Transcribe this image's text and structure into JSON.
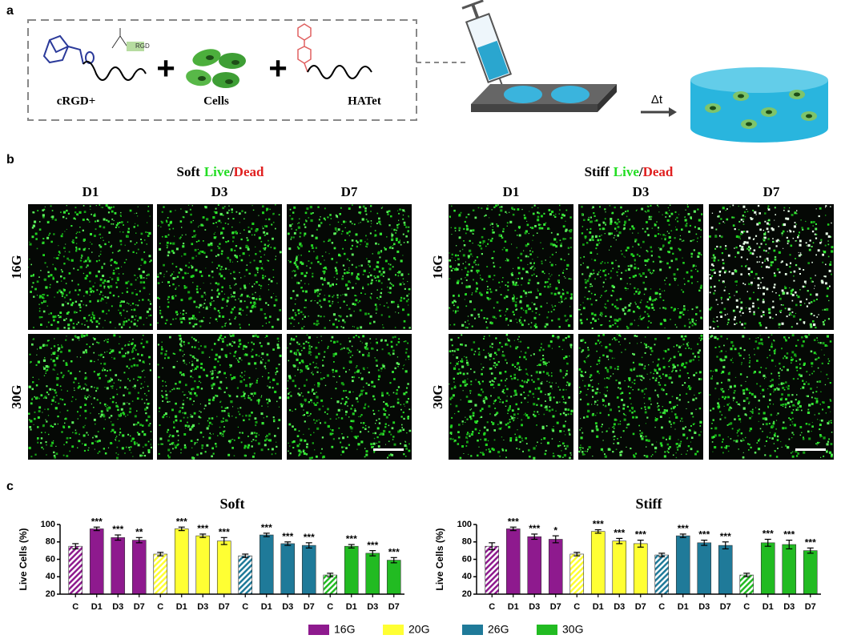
{
  "panel_labels": {
    "a": "a",
    "b": "b",
    "c": "c"
  },
  "schematic": {
    "crgd": "cRGD+",
    "rgd": "RGD",
    "cells": "Cells",
    "hatet": "HATet",
    "plus1": "+",
    "plus2": "+",
    "delta_t": "Δt"
  },
  "images": {
    "soft_title": {
      "word": "Soft",
      "live": "Live",
      "slash": "/",
      "dead": "Dead"
    },
    "stiff_title": {
      "word": "Stiff",
      "live": "Live",
      "slash": "/",
      "dead": "Dead"
    },
    "soft_days": [
      "D1",
      "D3",
      "D7"
    ],
    "stiff_days": [
      "D1",
      "D3",
      "D7"
    ],
    "soft_rows": [
      "16G",
      "30G"
    ],
    "stiff_rows": [
      "16G",
      "30G"
    ]
  },
  "legend": [
    {
      "name": "16G",
      "color": "#8e1a8e"
    },
    {
      "name": "20G",
      "color": "#ffff33"
    },
    {
      "name": "26G",
      "color": "#1f7a99"
    },
    {
      "name": "30G",
      "color": "#22bb22"
    }
  ],
  "chart_data": [
    {
      "type": "bar",
      "title": "Soft",
      "y_label": "Live Cells (%)",
      "categories": [
        "C",
        "D1",
        "D3",
        "D7",
        "C",
        "D1",
        "D3",
        "D7",
        "C",
        "D1",
        "D3",
        "D7",
        "C",
        "D1",
        "D3",
        "D7"
      ],
      "values": [
        75,
        95,
        85,
        82,
        66,
        95,
        87,
        81,
        64,
        88,
        78,
        76,
        42,
        75,
        67,
        59
      ],
      "errors": [
        3,
        2,
        3,
        3,
        2,
        2,
        2,
        4,
        2,
        2,
        2,
        3,
        2,
        2,
        3,
        3
      ],
      "annotations": [
        null,
        "***",
        "***",
        "**",
        null,
        "***",
        "***",
        "***",
        null,
        "***",
        "***",
        "***",
        null,
        "***",
        "***",
        "***"
      ],
      "ylim": [
        20,
        100
      ],
      "yticks": [
        20,
        40,
        60,
        80,
        100
      ]
    },
    {
      "type": "bar",
      "title": "Stiff",
      "y_label": "Live Cells (%)",
      "categories": [
        "C",
        "D1",
        "D3",
        "D7",
        "C",
        "D1",
        "D3",
        "D7",
        "C",
        "D1",
        "D3",
        "D7",
        "C",
        "D1",
        "D3",
        "D7"
      ],
      "values": [
        75,
        95,
        86,
        83,
        66,
        92,
        81,
        78,
        65,
        87,
        79,
        76,
        42,
        79,
        77,
        70
      ],
      "errors": [
        4,
        2,
        3,
        4,
        2,
        2,
        3,
        4,
        2,
        2,
        3,
        4,
        2,
        4,
        5,
        3
      ],
      "annotations": [
        null,
        "***",
        "***",
        "*",
        null,
        "***",
        "***",
        "***",
        null,
        "***",
        "***",
        "***",
        null,
        "***",
        "***",
        "***"
      ],
      "ylim": [
        20,
        100
      ],
      "yticks": [
        20,
        40,
        60,
        80,
        100
      ]
    }
  ]
}
